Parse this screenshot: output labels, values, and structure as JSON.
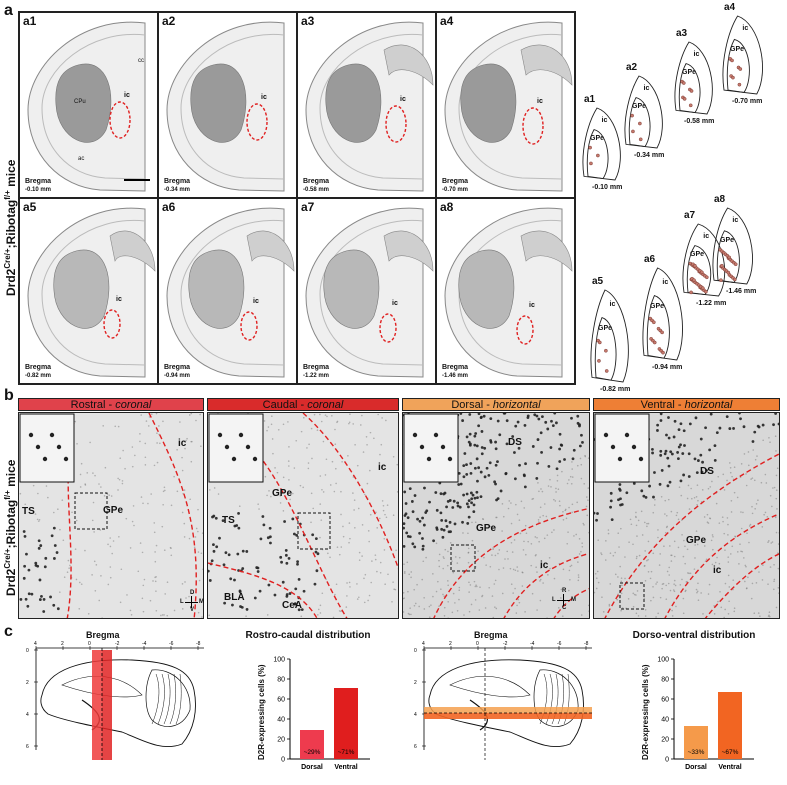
{
  "panel_a": {
    "label": "a",
    "side_label": "Drd2",
    "side_sup": "Cre/+",
    "side_label2": ";Ribotag",
    "side_sup2": "f/+",
    "side_label3": " mice",
    "slices": [
      {
        "id": "a1",
        "bregma": "Bregma",
        "mm": "-0.10 mm"
      },
      {
        "id": "a2",
        "bregma": "Bregma",
        "mm": "-0.34 mm"
      },
      {
        "id": "a3",
        "bregma": "Bregma",
        "mm": "-0.58 mm"
      },
      {
        "id": "a4",
        "bregma": "Bregma",
        "mm": "-0.70 mm"
      },
      {
        "id": "a5",
        "bregma": "Bregma",
        "mm": "-0.82 mm"
      },
      {
        "id": "a6",
        "bregma": "Bregma",
        "mm": "-0.94 mm"
      },
      {
        "id": "a7",
        "bregma": "Bregma",
        "mm": "-1.22 mm"
      },
      {
        "id": "a8",
        "bregma": "Bregma",
        "mm": "-1.46 mm"
      }
    ],
    "slice_text": {
      "cc": "cc",
      "cpu": "CPu",
      "ic": "ic",
      "ac": "ac"
    },
    "schematics": [
      {
        "id": "a1",
        "mm": "-0.10 mm"
      },
      {
        "id": "a2",
        "mm": "-0.34 mm"
      },
      {
        "id": "a3",
        "mm": "-0.58 mm"
      },
      {
        "id": "a4",
        "mm": "-0.70 mm"
      },
      {
        "id": "a5",
        "mm": "-0.82 mm"
      },
      {
        "id": "a6",
        "mm": "-0.94 mm"
      },
      {
        "id": "a7",
        "mm": "-1.22 mm"
      },
      {
        "id": "a8",
        "mm": "-1.46 mm"
      }
    ],
    "schem_labels": {
      "ic": "ic",
      "gpe": "GPe"
    }
  },
  "panel_b": {
    "label": "b",
    "headers": [
      {
        "main": "Rostral - ",
        "italic": "coronal",
        "color": "#e0424b"
      },
      {
        "main": "Caudal - ",
        "italic": "coronal",
        "color": "#d92b2b"
      },
      {
        "main": "Dorsal - ",
        "italic": "horizontal",
        "color": "#f0a35a"
      },
      {
        "main": "Ventral - ",
        "italic": "horizontal",
        "color": "#ee7f35"
      }
    ],
    "regions": {
      "ic": "ic",
      "gpe": "GPe",
      "ts": "TS",
      "bla": "BLA",
      "cea": "CeA",
      "ds": "DS"
    },
    "compass_coronal": {
      "d": "D",
      "v": "V",
      "l": "L",
      "m": "M"
    },
    "compass_horizontal": {
      "r": "R",
      "c": "C",
      "l": "L",
      "m": "M"
    }
  },
  "panel_c": {
    "label": "c",
    "bregma_label": "Bregma",
    "ap_ticks": [
      "4",
      "2",
      "0",
      "-2",
      "-4",
      "-6",
      "-8"
    ],
    "dv_ticks": [
      "0",
      "2",
      "4",
      "6"
    ],
    "colors": {
      "dorsal": "#ee3b3b",
      "ventral": "#e02323",
      "dorsal_h": "#f5a04f",
      "ventral_h": "#f26522"
    }
  },
  "chart_data": [
    {
      "type": "bar",
      "title": "Rostro-caudal distribution",
      "ylabel": "D2R-expressing cells (%)",
      "categories": [
        "Dorsal",
        "Ventral"
      ],
      "values": [
        29,
        71
      ],
      "value_labels": [
        "~29%",
        "~71%"
      ],
      "ylim": [
        0,
        100
      ],
      "yticks": [
        "0",
        "20",
        "40",
        "60",
        "80",
        "100"
      ],
      "colors": [
        "#ee3b4e",
        "#e01e1e"
      ]
    },
    {
      "type": "bar",
      "title": "Dorso-ventral distribution",
      "ylabel": "D2R-expressing cells (%)",
      "categories": [
        "Dorsal",
        "Ventral"
      ],
      "values": [
        33,
        67
      ],
      "value_labels": [
        "~33%",
        "~67%"
      ],
      "ylim": [
        0,
        100
      ],
      "yticks": [
        "0",
        "20",
        "40",
        "60",
        "80",
        "100"
      ],
      "colors": [
        "#f59a4a",
        "#f26522"
      ]
    }
  ]
}
